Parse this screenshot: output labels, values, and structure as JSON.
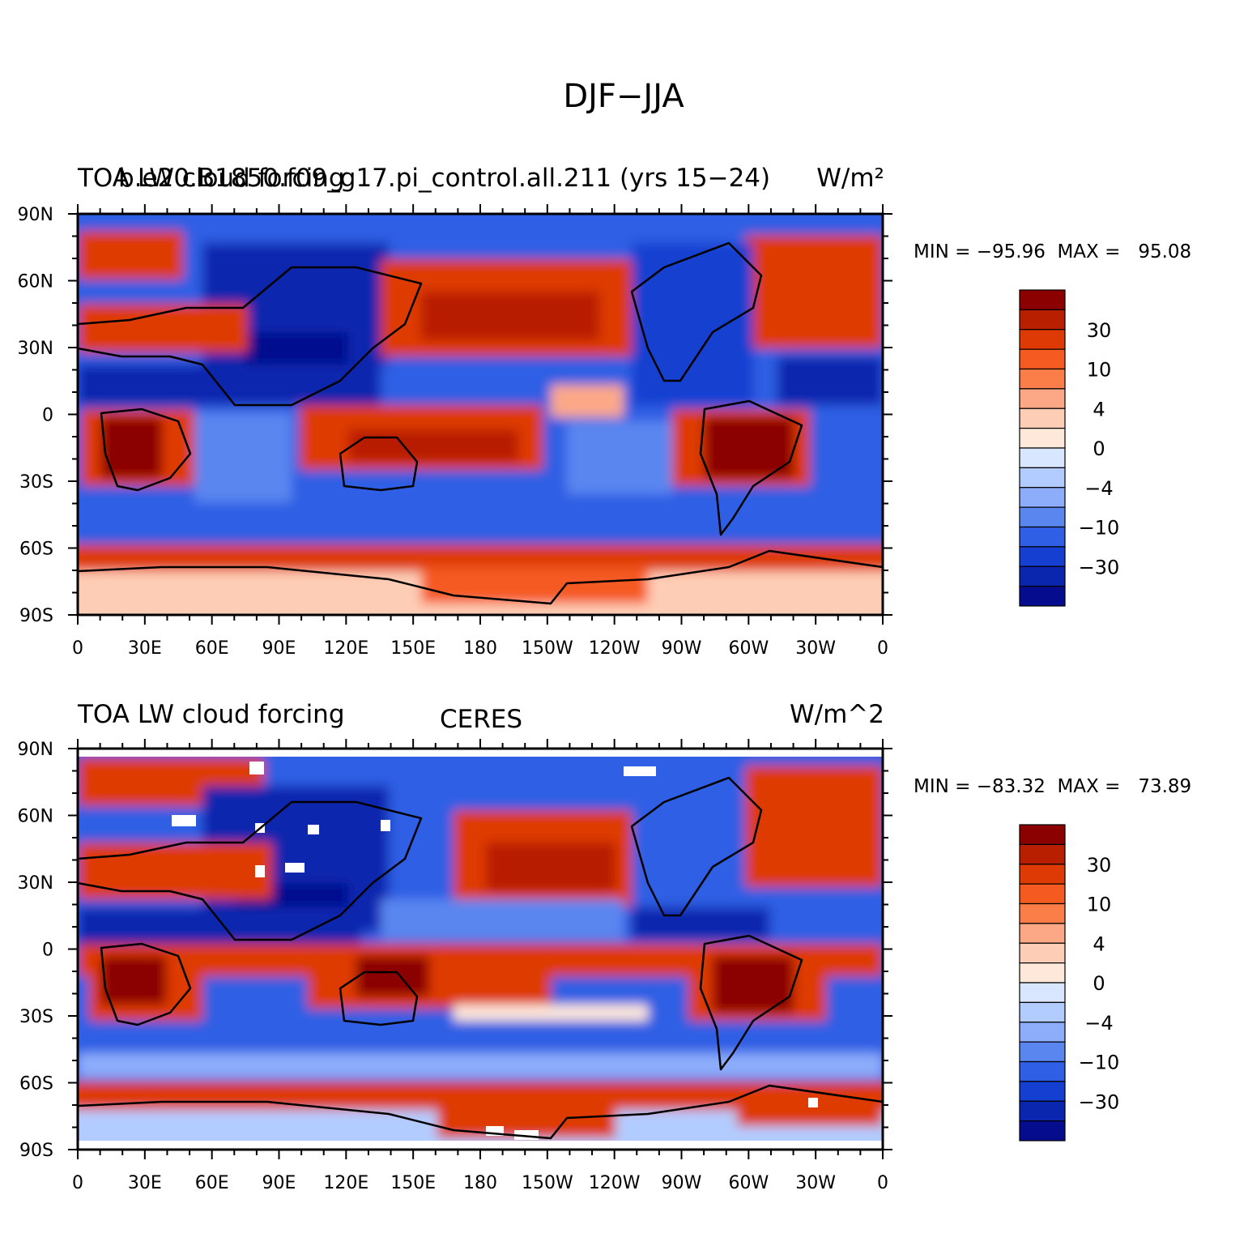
{
  "figure": {
    "title": "DJF−JJA",
    "x_tick_labels": [
      "0",
      "30E",
      "60E",
      "90E",
      "120E",
      "150E",
      "180",
      "150W",
      "120W",
      "90W",
      "60W",
      "30W",
      "0"
    ],
    "y_tick_labels": [
      "90N",
      "60N",
      "30N",
      "0",
      "30S",
      "60S",
      "90S"
    ],
    "colorbar_labels": [
      "30",
      "10",
      "4",
      "0",
      "−4",
      "−10",
      "−30"
    ],
    "colorbar_colors": [
      "#8b0000",
      "#b81e00",
      "#de3a06",
      "#f55a20",
      "#fb7e49",
      "#fca887",
      "#fecdb5",
      "#fee8da",
      "#d8e7ff",
      "#b3ccff",
      "#8dadfb",
      "#5a86f0",
      "#2f5fe4",
      "#153fd0",
      "#0a25ae",
      "#050d8e"
    ]
  },
  "panels": [
    {
      "id": "model",
      "left_title": "TOA LW cloud forcing",
      "center_title": "b.e20.B1850.f09_g17.pi_control.all.211 (yrs 15−24)",
      "right_title": "W/m²",
      "stats": "MIN = −95.96  MAX =   95.08"
    },
    {
      "id": "obs",
      "left_title": "TOA LW cloud forcing",
      "center_title": "CERES",
      "right_title": "W/m^2",
      "stats": "MIN = −83.32  MAX =   73.89"
    }
  ],
  "chart_data": {
    "type": "heatmap",
    "description_units": "W/m2",
    "x_range": [
      0,
      360
    ],
    "y_range": [
      -90,
      90
    ],
    "levels": [
      -40,
      -30,
      -20,
      -10,
      -6,
      -4,
      -2,
      0,
      2,
      4,
      6,
      10,
      20,
      30,
      40
    ],
    "panels": [
      {
        "name": "b.e20.B1850.f09_g17.pi_control.all.211 (yrs 15−24)",
        "min": -95.96,
        "max": 95.08
      },
      {
        "name": "CERES",
        "min": -83.32,
        "max": 73.89
      }
    ]
  }
}
